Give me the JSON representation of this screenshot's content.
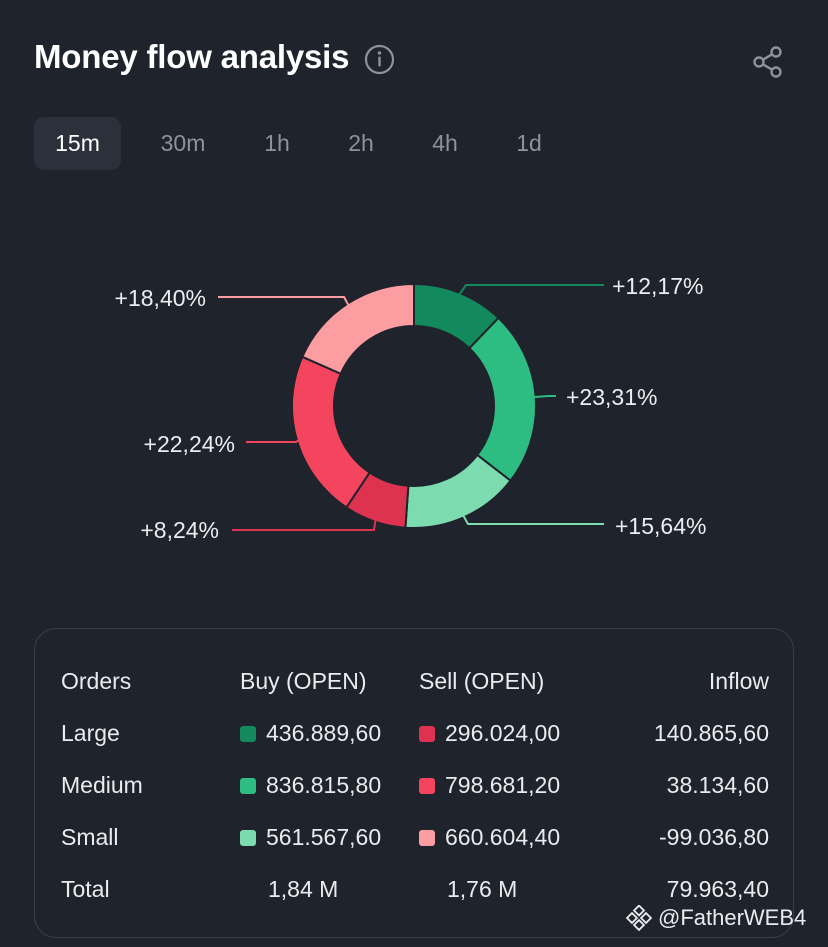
{
  "header": {
    "title": "Money flow analysis",
    "info_icon": "info-icon",
    "share_icon": "share-icon"
  },
  "tabs": [
    {
      "label": "15m",
      "active": true
    },
    {
      "label": "30m",
      "active": false
    },
    {
      "label": "1h",
      "active": false
    },
    {
      "label": "2h",
      "active": false
    },
    {
      "label": "4h",
      "active": false
    },
    {
      "label": "1d",
      "active": false
    }
  ],
  "donut": {
    "segments": [
      {
        "name": "buy-large",
        "label": "+12,17%",
        "value": 12.17,
        "color": "#138a5d"
      },
      {
        "name": "buy-medium",
        "label": "+23,31%",
        "value": 23.31,
        "color": "#2dbd82"
      },
      {
        "name": "buy-small",
        "label": "+15,64%",
        "value": 15.64,
        "color": "#7ddbb0"
      },
      {
        "name": "sell-large",
        "label": "+8,24%",
        "value": 8.24,
        "color": "#dd3350"
      },
      {
        "name": "sell-medium",
        "label": "+22,24%",
        "value": 22.24,
        "color": "#f5455e"
      },
      {
        "name": "sell-small",
        "label": "+18,40%",
        "value": 18.4,
        "color": "#fc9da1"
      }
    ]
  },
  "table": {
    "headers": {
      "orders": "Orders",
      "buy": "Buy (OPEN)",
      "sell": "Sell (OPEN)",
      "inflow": "Inflow"
    },
    "rows": [
      {
        "label": "Large",
        "buy": "436.889,60",
        "sell": "296.024,00",
        "inflow": "140.865,60",
        "buy_color": "#138a5d",
        "sell_color": "#dd3350"
      },
      {
        "label": "Medium",
        "buy": "836.815,80",
        "sell": "798.681,20",
        "inflow": "38.134,60",
        "buy_color": "#2dbd82",
        "sell_color": "#f5455e"
      },
      {
        "label": "Small",
        "buy": "561.567,60",
        "sell": "660.604,40",
        "inflow": "-99.036,80",
        "buy_color": "#7ddbb0",
        "sell_color": "#fc9da1"
      }
    ],
    "total": {
      "label": "Total",
      "buy": "1,84 M",
      "sell": "1,76 M",
      "inflow": "79.963,40"
    }
  },
  "watermark": {
    "text": "@FatherWEB4",
    "icon": "binance-logo-icon"
  }
}
